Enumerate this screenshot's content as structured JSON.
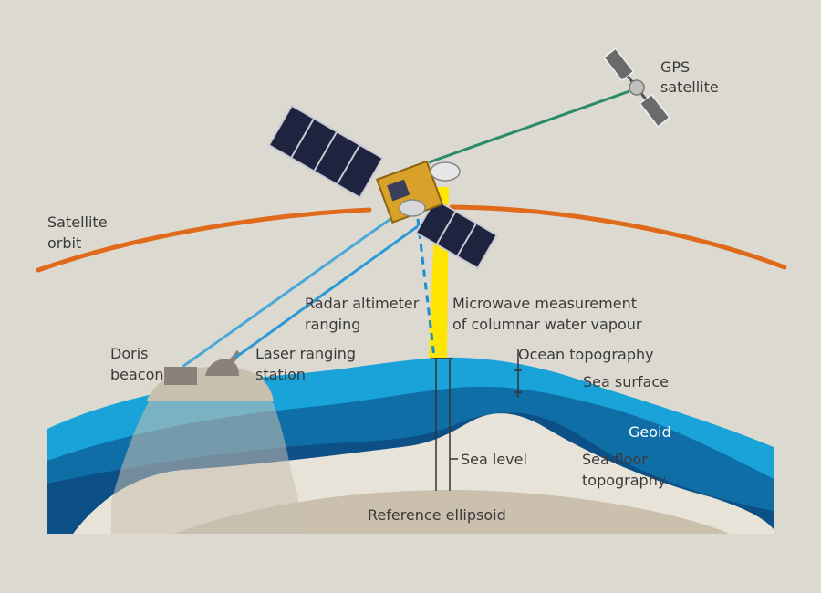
{
  "labels": {
    "gps_line1": "GPS",
    "gps_line2": "satellite",
    "orbit_line1": "Satellite",
    "orbit_line2": "orbit",
    "radar_line1": "Radar altimeter",
    "radar_line2": "ranging",
    "microwave_line1": "Microwave measurement",
    "microwave_line2": "of columnar water vapour",
    "doris_line1": "Doris",
    "doris_line2": "beacon",
    "laser_line1": "Laser ranging",
    "laser_line2": "station",
    "ocean_topography": "Ocean topography",
    "sea_surface": "Sea surface",
    "geoid": "Geoid",
    "sea_level": "Sea level",
    "seafloor_line1": "Sea-floor",
    "seafloor_line2": "topography",
    "reference_ellipsoid": "Reference ellipsoid"
  },
  "colors": {
    "background": "#dcdad0",
    "orbit": "#e06a1c",
    "sea_surface": "#1aa3d9",
    "geoid": "#0f6ea6",
    "deep": "#0d4f87",
    "seafloor": "#e8e3d8",
    "ellipsoid": "#cbbfae",
    "gps_beam": "#2a8a6a",
    "laser_beam": "#4aa9d6",
    "microwave_beam": "#ffe600"
  }
}
